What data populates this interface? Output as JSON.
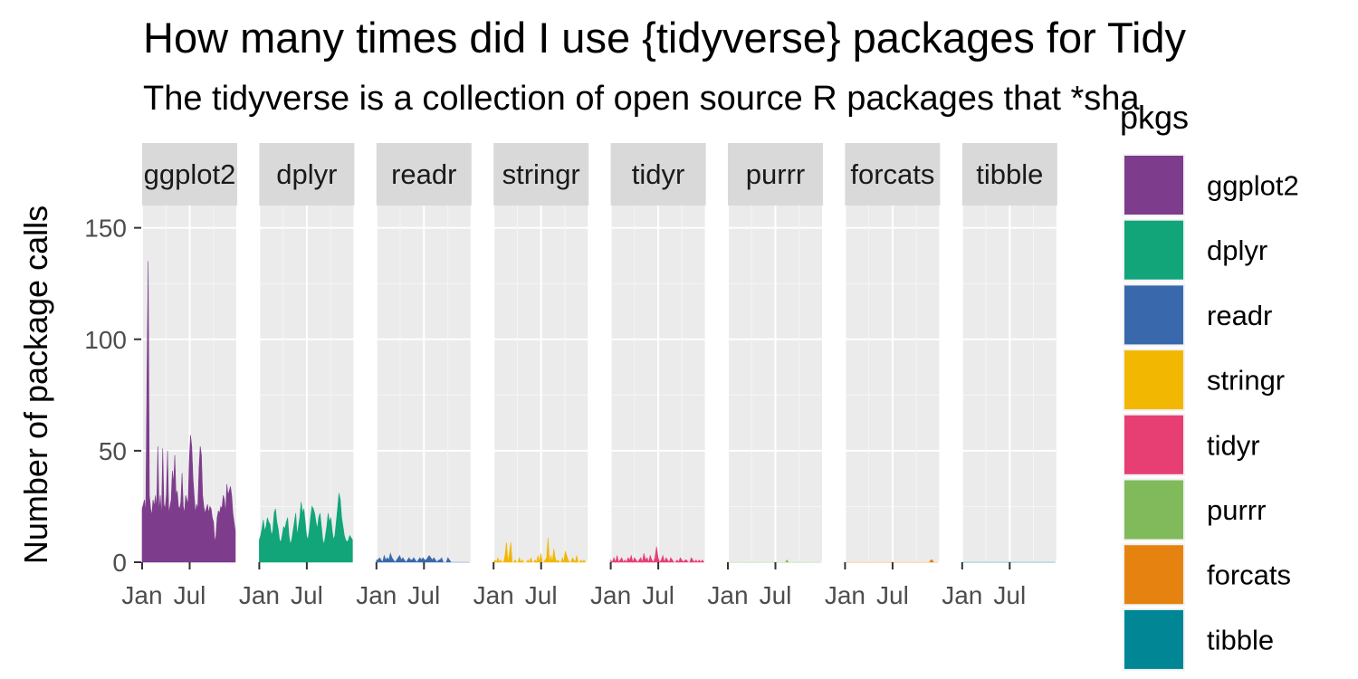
{
  "title": "How many times did I use {tidyverse} packages for Tidy",
  "subtitle": "The tidyverse is a collection of open source R packages that *sha",
  "chart_data": {
    "type": "area",
    "ylabel": "Number of package calls",
    "ylim": [
      0,
      160
    ],
    "yticks": [
      0,
      50,
      100,
      150
    ],
    "x_tick_labels": [
      "Jan",
      "Jul"
    ],
    "legend_title": "pkgs",
    "legend_placement": "right",
    "grid": true,
    "facets": [
      {
        "name": "ggplot2",
        "color": "#7D3C8C",
        "values": [
          24,
          26,
          28,
          22,
          83,
          135,
          30,
          24,
          21,
          28,
          25,
          30,
          24,
          52,
          22,
          30,
          20,
          51,
          26,
          24,
          30,
          50,
          22,
          25,
          28,
          41,
          35,
          48,
          30,
          32,
          25,
          24,
          27,
          40,
          25,
          22,
          30,
          28,
          26,
          46,
          57,
          52,
          38,
          30,
          22,
          26,
          24,
          42,
          52,
          48,
          30,
          25,
          22,
          24,
          26,
          22,
          25,
          24,
          20,
          18,
          9,
          12,
          20,
          23,
          22,
          25,
          24,
          30,
          28,
          22,
          35,
          30,
          32,
          34,
          30,
          22,
          18,
          14
        ]
      },
      {
        "name": "dplyr",
        "color": "#11A579",
        "values": [
          10,
          12,
          15,
          19,
          14,
          16,
          20,
          18,
          17,
          12,
          14,
          22,
          24,
          18,
          15,
          10,
          9,
          12,
          16,
          15,
          18,
          20,
          12,
          8,
          10,
          14,
          18,
          22,
          12,
          16,
          20,
          27,
          22,
          24,
          18,
          12,
          10,
          14,
          20,
          25,
          24,
          22,
          18,
          15,
          20,
          22,
          16,
          10,
          8,
          12,
          16,
          22,
          18,
          20,
          14,
          10,
          12,
          18,
          24,
          31,
          28,
          20,
          16,
          12,
          10,
          9,
          10,
          12,
          11,
          10
        ]
      },
      {
        "name": "readr",
        "color": "#3969AC",
        "values": [
          1,
          1,
          2,
          1,
          0,
          3,
          1,
          2,
          1,
          4,
          2,
          1,
          0,
          1,
          2,
          3,
          1,
          2,
          1,
          0,
          1,
          2,
          1,
          1,
          2,
          1,
          0,
          1,
          2,
          1,
          2,
          1,
          1,
          2,
          3,
          2,
          1,
          2,
          1,
          0,
          1,
          1,
          2,
          0,
          0,
          0,
          2,
          1,
          0,
          0,
          0,
          0,
          0,
          0,
          0,
          0,
          0,
          0,
          0,
          0,
          0
        ]
      },
      {
        "name": "stringr",
        "color": "#F2B701",
        "values": [
          0,
          1,
          0,
          2,
          0,
          1,
          0,
          0,
          3,
          9,
          0,
          4,
          9,
          0,
          0,
          1,
          0,
          0,
          2,
          0,
          1,
          0,
          0,
          0,
          1,
          0,
          2,
          0,
          0,
          1,
          0,
          3,
          0,
          4,
          0,
          0,
          1,
          2,
          11,
          0,
          3,
          0,
          6,
          2,
          0,
          1,
          0,
          0,
          2,
          0,
          5,
          3,
          1,
          0,
          0,
          2,
          1,
          0,
          3,
          0,
          0,
          1,
          0,
          1,
          0,
          0
        ]
      },
      {
        "name": "tidyr",
        "color": "#E73F74",
        "values": [
          1,
          0,
          2,
          0,
          3,
          0,
          1,
          2,
          0,
          1,
          0,
          2,
          1,
          3,
          0,
          2,
          1,
          0,
          1,
          2,
          0,
          4,
          1,
          2,
          0,
          3,
          1,
          0,
          2,
          7,
          2,
          0,
          1,
          3,
          0,
          2,
          1,
          0,
          2,
          1,
          0,
          0,
          1,
          0,
          2,
          1,
          0,
          1,
          1,
          0,
          0,
          2,
          1,
          0,
          1,
          0,
          1,
          0,
          1,
          0
        ]
      },
      {
        "name": "purrr",
        "color": "#80BA5A",
        "values": [
          0,
          0,
          0,
          0,
          0,
          0,
          0,
          0,
          0,
          0,
          0,
          0,
          0,
          0,
          0,
          0,
          0,
          0,
          0,
          0,
          0,
          0,
          0,
          0,
          0,
          0,
          0,
          0,
          0,
          0,
          0,
          0,
          0,
          0,
          0,
          0,
          0,
          0,
          1,
          0,
          0,
          0,
          0,
          0,
          0,
          0,
          0,
          0,
          0,
          0,
          0,
          0,
          0,
          0,
          0,
          0,
          0,
          0,
          0,
          0,
          0
        ]
      },
      {
        "name": "forcats",
        "color": "#E68310",
        "values": [
          0,
          0,
          0,
          0,
          0,
          0,
          0,
          0,
          0,
          0,
          0,
          0,
          0,
          0,
          0,
          0,
          0,
          0,
          0,
          0,
          0,
          0,
          0,
          0,
          0,
          0,
          0,
          0,
          0,
          0,
          0,
          0,
          0,
          0,
          0,
          0,
          0,
          0,
          0,
          0,
          0,
          0,
          0,
          0,
          0,
          0,
          0,
          0,
          0,
          0,
          0,
          0,
          0,
          0,
          0,
          0,
          0,
          0,
          1,
          1,
          0,
          0,
          0,
          0
        ]
      },
      {
        "name": "tibble",
        "color": "#008695",
        "values": [
          0,
          0,
          0,
          0,
          0,
          0,
          0,
          0,
          0,
          0,
          0,
          0,
          0,
          0,
          0,
          0,
          0,
          0,
          0,
          0,
          0,
          0,
          0,
          0,
          0,
          0,
          0,
          0,
          0,
          0,
          0,
          0,
          0,
          0,
          0,
          0,
          0,
          0,
          0,
          0,
          0,
          0,
          0,
          0,
          0,
          0,
          0,
          0,
          0,
          0,
          0,
          0,
          0,
          0,
          0,
          0,
          0,
          0,
          0,
          0
        ]
      }
    ]
  }
}
